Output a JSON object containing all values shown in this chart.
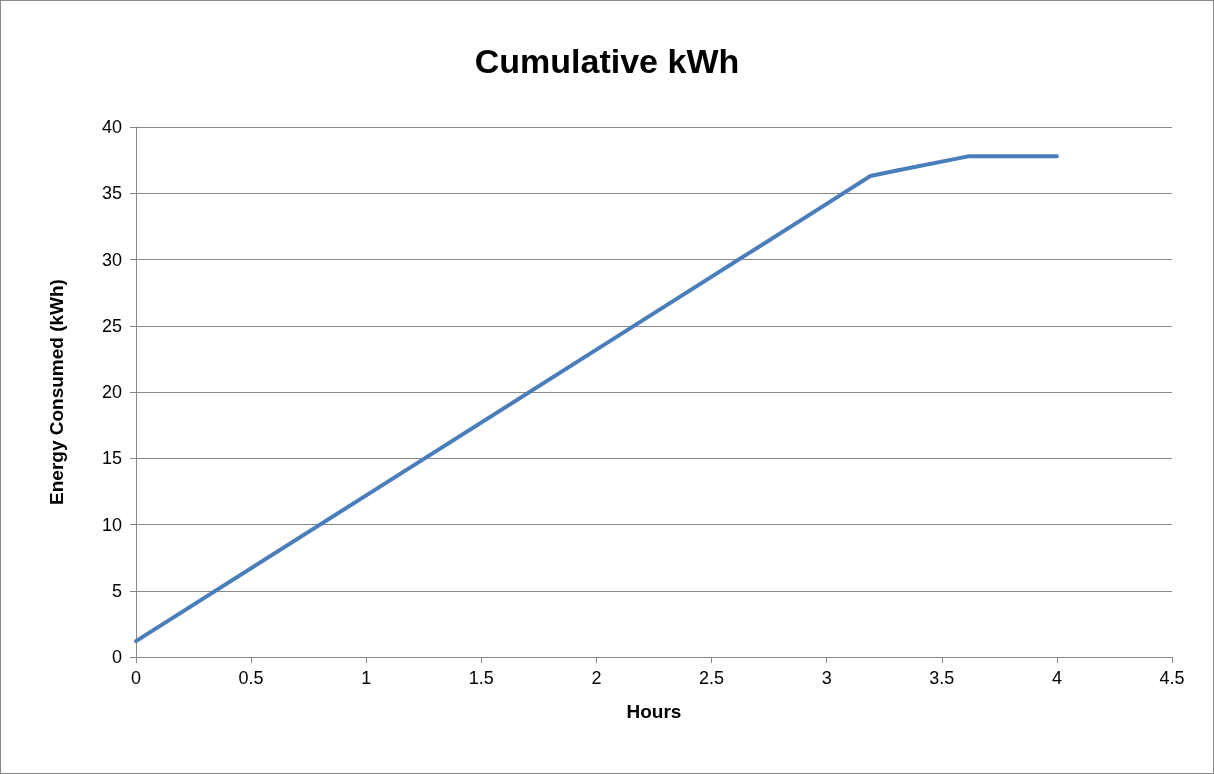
{
  "chart_data": {
    "type": "line",
    "title": "Cumulative kWh",
    "xlabel": "Hours",
    "ylabel": "Energy Consumed (kWh)",
    "x": [
      0,
      1,
      2,
      3,
      3.19,
      3.3,
      3.62,
      4
    ],
    "series": [
      {
        "color": "#4a7ebb",
        "values": [
          1.2,
          12.2,
          23.2,
          34.2,
          36.3,
          36.7,
          37.8,
          37.8
        ]
      }
    ],
    "xlim": [
      0,
      4.5
    ],
    "xticks": [
      0,
      0.5,
      1,
      1.5,
      2,
      2.5,
      3,
      3.5,
      4,
      4.5
    ],
    "ylim": [
      0,
      40
    ],
    "yticks": [
      0,
      5,
      10,
      15,
      20,
      25,
      30,
      35,
      40
    ],
    "grid": "y",
    "marker": "none",
    "line_style": "solid"
  }
}
